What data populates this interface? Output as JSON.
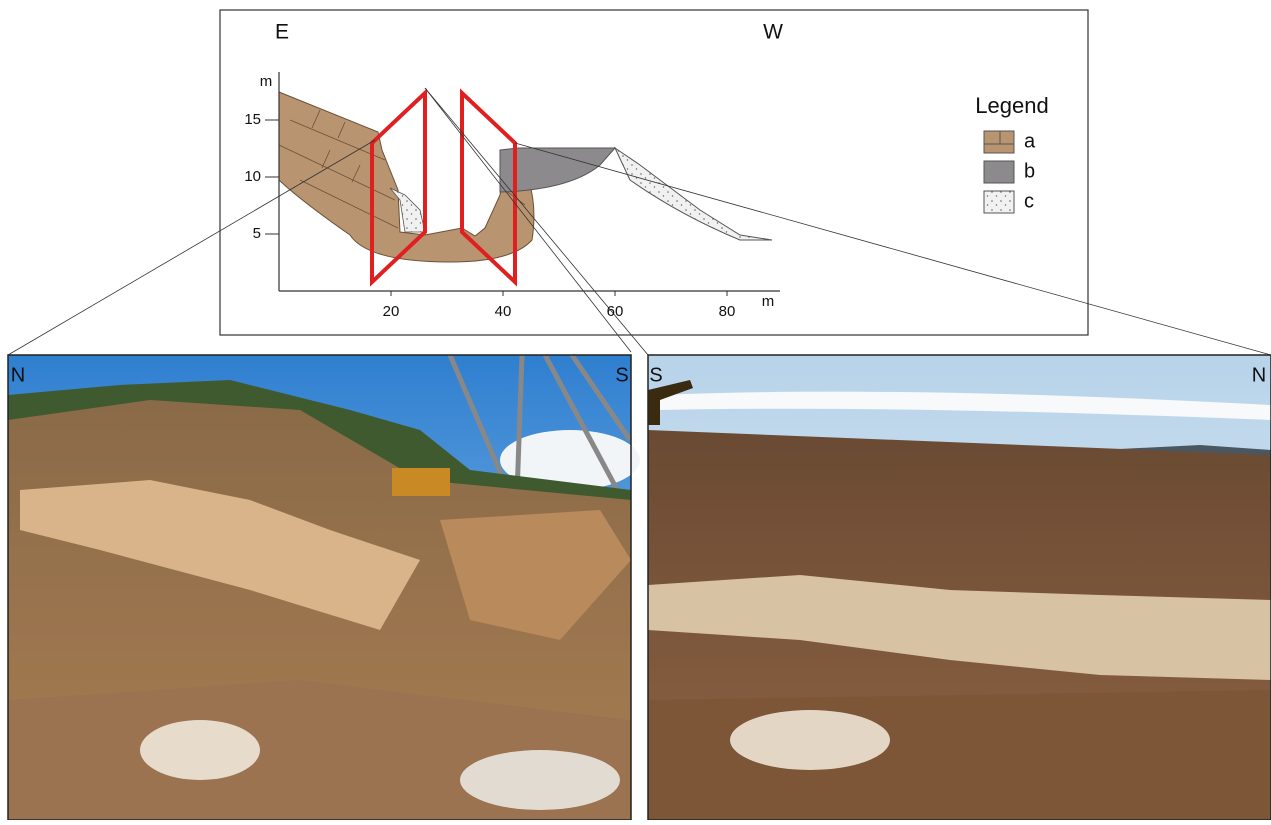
{
  "diagram": {
    "direction_left": "E",
    "direction_right": "W",
    "y_unit": "m",
    "x_unit": "m",
    "yticks": [
      5,
      10,
      15
    ],
    "xticks": [
      20,
      40,
      60,
      80
    ]
  },
  "legend": {
    "title": "Legend",
    "items": [
      "a",
      "b",
      "c"
    ]
  },
  "photos": [
    {
      "left_label": "N",
      "right_label": "S"
    },
    {
      "left_label": "S",
      "right_label": "N"
    }
  ]
}
